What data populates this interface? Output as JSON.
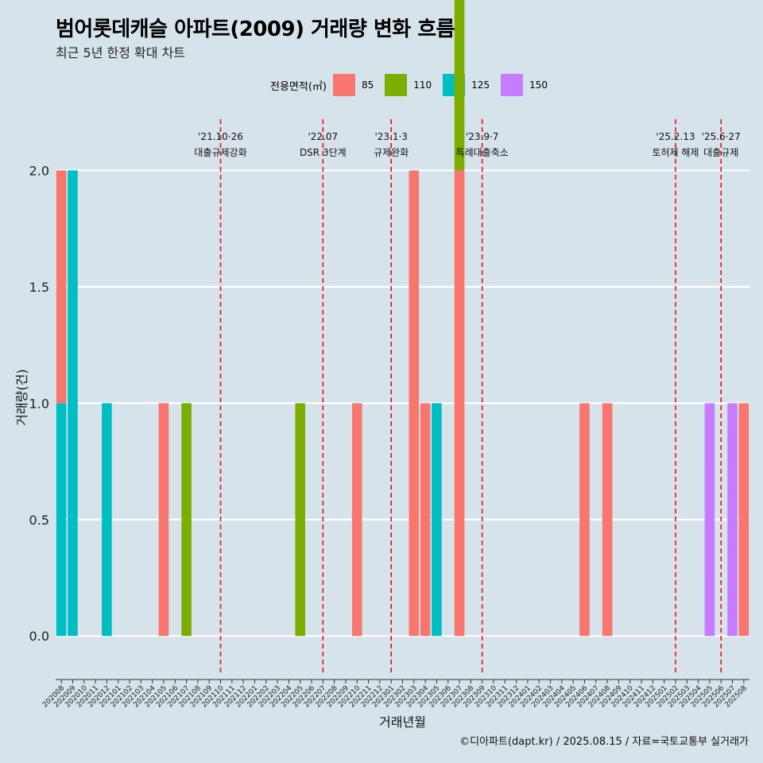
{
  "title": "범어롯데캐슬 아파트(2009) 거래량 변화 흐름",
  "subtitle": "최근 5년 한정 확대 차트",
  "caption": "©디아파트(dapt.kr) / 2025.08.15 / 자료=국토교통부 실거래가",
  "legend": {
    "title": "전용면적(㎡)",
    "items": [
      {
        "label": "85",
        "color": "#f8766d"
      },
      {
        "label": "110",
        "color": "#7cae00"
      },
      {
        "label": "125",
        "color": "#00bfc4"
      },
      {
        "label": "150",
        "color": "#c77cff"
      }
    ]
  },
  "chart_data": {
    "type": "bar",
    "xlabel": "거래년월",
    "ylabel": "거래량(건)",
    "ylim": [
      -0.17,
      2.22
    ],
    "yticks": [
      "0.0",
      "0.5",
      "1.0",
      "1.5",
      "2.0"
    ],
    "categories": [
      "202008",
      "202009",
      "202010",
      "202011",
      "202012",
      "202101",
      "202102",
      "202103",
      "202104",
      "202105",
      "202106",
      "202107",
      "202108",
      "202109",
      "202110",
      "202111",
      "202112",
      "202201",
      "202202",
      "202203",
      "202204",
      "202205",
      "202206",
      "202207",
      "202208",
      "202209",
      "202210",
      "202211",
      "202212",
      "202301",
      "202302",
      "202303",
      "202304",
      "202305",
      "202306",
      "202307",
      "202308",
      "202309",
      "202310",
      "202311",
      "202312",
      "202401",
      "202402",
      "202403",
      "202404",
      "202405",
      "202406",
      "202407",
      "202408",
      "202409",
      "202410",
      "202411",
      "202412",
      "202501",
      "202502",
      "202503",
      "202504",
      "202505",
      "202506",
      "202507",
      "202508"
    ],
    "bars": [
      {
        "month": "202008",
        "area": "125",
        "value": 1
      },
      {
        "month": "202008",
        "area": "85",
        "value": 1
      },
      {
        "month": "202009",
        "area": "125",
        "value": 2
      },
      {
        "month": "202012",
        "area": "125",
        "value": 1
      },
      {
        "month": "202105",
        "area": "85",
        "value": 1
      },
      {
        "month": "202107",
        "area": "110",
        "value": 1
      },
      {
        "month": "202205",
        "area": "110",
        "value": 1
      },
      {
        "month": "202210",
        "area": "85",
        "value": 1
      },
      {
        "month": "202303",
        "area": "85",
        "value": 2
      },
      {
        "month": "202304",
        "area": "85",
        "value": 1
      },
      {
        "month": "202305",
        "area": "125",
        "value": 1
      },
      {
        "month": "202307",
        "area": "85",
        "value": 2
      },
      {
        "month": "202307",
        "area": "110",
        "value": 1
      },
      {
        "month": "202406",
        "area": "85",
        "value": 1
      },
      {
        "month": "202408",
        "area": "85",
        "value": 1
      },
      {
        "month": "202505",
        "area": "150",
        "value": 1
      },
      {
        "month": "202507",
        "area": "150",
        "value": 1
      },
      {
        "month": "202508",
        "area": "85",
        "value": 1
      }
    ],
    "events": [
      {
        "month": "202110",
        "date": "'21.10·26",
        "label": "대출규제강화"
      },
      {
        "month": "202207",
        "date": "'22.07",
        "label": "DSR 3단계"
      },
      {
        "month": "202301",
        "date": "'23.1·3",
        "label": "규제완화"
      },
      {
        "month": "202309",
        "date": "'23.9·7",
        "label": "특례대출축소"
      },
      {
        "month": "202502",
        "date": "'25.2.13",
        "label": "토허제 해제"
      },
      {
        "month": "202506",
        "date": "'25.6·27",
        "label": "대출규제"
      }
    ]
  }
}
